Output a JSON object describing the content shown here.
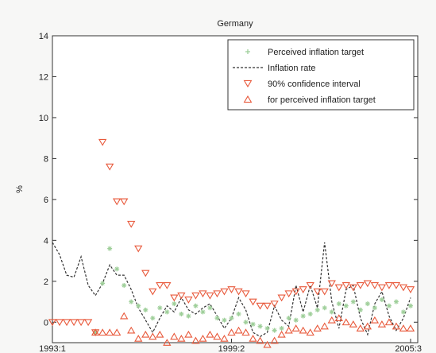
{
  "chart_data": {
    "type": "line",
    "title": "Germany",
    "xlabel": "",
    "ylabel": "%",
    "x_tick_labels": [
      "1993:1",
      "1999:2",
      "2005:3"
    ],
    "x_tick_values": [
      1993.0,
      1999.25,
      2005.5
    ],
    "xlim": [
      1993.0,
      2005.75
    ],
    "ylim": [
      -1,
      14
    ],
    "y_ticks": [
      0,
      2,
      4,
      6,
      8,
      10,
      12,
      14
    ],
    "grid": false,
    "legend": {
      "placement": "top-right",
      "entries": [
        "Perceived inflation target",
        "Inflation rate",
        "90% confidence interval",
        "for perceived inflation target"
      ]
    },
    "colors": {
      "target": "#9fcf9a",
      "inflation": "#333333",
      "ci": "#e8583a"
    },
    "x": [
      1993.0,
      1993.25,
      1993.5,
      1993.75,
      1994.0,
      1994.25,
      1994.5,
      1994.75,
      1995.0,
      1995.25,
      1995.5,
      1995.75,
      1996.0,
      1996.25,
      1996.5,
      1996.75,
      1997.0,
      1997.25,
      1997.5,
      1997.75,
      1998.0,
      1998.25,
      1998.5,
      1998.75,
      1999.0,
      1999.25,
      1999.5,
      1999.75,
      2000.0,
      2000.25,
      2000.5,
      2000.75,
      2001.0,
      2001.25,
      2001.5,
      2001.75,
      2002.0,
      2002.25,
      2002.5,
      2002.75,
      2003.0,
      2003.25,
      2003.5,
      2003.75,
      2004.0,
      2004.25,
      2004.5,
      2004.75,
      2005.0,
      2005.25,
      2005.5
    ],
    "series": [
      {
        "name": "Perceived inflation target",
        "style": "markers",
        "values": [
          null,
          null,
          null,
          null,
          null,
          null,
          -0.5,
          1.9,
          3.6,
          2.6,
          1.8,
          1.0,
          0.8,
          0.6,
          0.2,
          0.7,
          0.5,
          0.9,
          0.4,
          0.3,
          0.8,
          0.5,
          0.7,
          0.2,
          0.1,
          0.2,
          0.4,
          0.0,
          -0.1,
          -0.2,
          -0.3,
          -0.4,
          -0.3,
          0.2,
          0.1,
          0.3,
          0.4,
          0.6,
          0.7,
          0.5,
          0.9,
          0.8,
          1.0,
          0.6,
          0.9,
          0.7,
          1.1,
          0.8,
          1.0,
          0.5,
          0.8
        ]
      },
      {
        "name": "Inflation rate",
        "style": "dashed-line",
        "values": [
          3.9,
          3.3,
          2.3,
          2.2,
          3.2,
          1.8,
          1.3,
          1.9,
          2.8,
          2.3,
          2.3,
          1.6,
          0.7,
          0.1,
          -0.5,
          0.2,
          0.8,
          0.5,
          1.2,
          0.6,
          0.4,
          0.7,
          0.9,
          0.3,
          -0.3,
          0.2,
          1.2,
          0.6,
          -0.5,
          -0.7,
          -0.5,
          0.8,
          0.1,
          -0.2,
          1.8,
          0.5,
          1.8,
          0.7,
          3.9,
          1.0,
          -0.3,
          1.6,
          1.8,
          0.2,
          -0.6,
          0.9,
          1.5,
          0.3,
          -0.4,
          0.2,
          1.2
        ]
      },
      {
        "name": "90% confidence interval",
        "style": "down-triangle",
        "values": [
          0,
          0,
          0,
          0,
          0,
          0,
          -0.5,
          8.8,
          7.6,
          5.9,
          5.9,
          4.8,
          3.6,
          2.4,
          1.5,
          1.8,
          1.8,
          1.2,
          1.3,
          1.1,
          1.3,
          1.4,
          1.3,
          1.4,
          1.5,
          1.6,
          1.5,
          1.4,
          1.0,
          0.8,
          0.8,
          0.9,
          1.2,
          1.4,
          1.5,
          1.6,
          1.8,
          1.5,
          1.5,
          1.9,
          1.7,
          1.8,
          1.7,
          1.8,
          1.9,
          1.8,
          1.7,
          1.8,
          1.8,
          1.7,
          1.6
        ]
      },
      {
        "name": "for perceived inflation target",
        "style": "up-triangle",
        "values": [
          null,
          null,
          null,
          null,
          null,
          null,
          -0.5,
          -0.5,
          -0.5,
          -0.5,
          0.3,
          -0.4,
          -0.8,
          -0.6,
          -0.7,
          -0.6,
          -1.0,
          -0.7,
          -0.8,
          -0.6,
          -0.9,
          -0.8,
          -0.6,
          -0.7,
          -0.8,
          -0.5,
          -0.4,
          -0.5,
          -0.8,
          -0.9,
          -1.1,
          -0.9,
          -0.6,
          -0.4,
          -0.3,
          -0.4,
          -0.5,
          -0.3,
          -0.2,
          0.1,
          0.2,
          0.0,
          -0.1,
          -0.3,
          -0.2,
          0.1,
          -0.1,
          0.0,
          -0.2,
          -0.3,
          -0.3
        ]
      }
    ]
  }
}
